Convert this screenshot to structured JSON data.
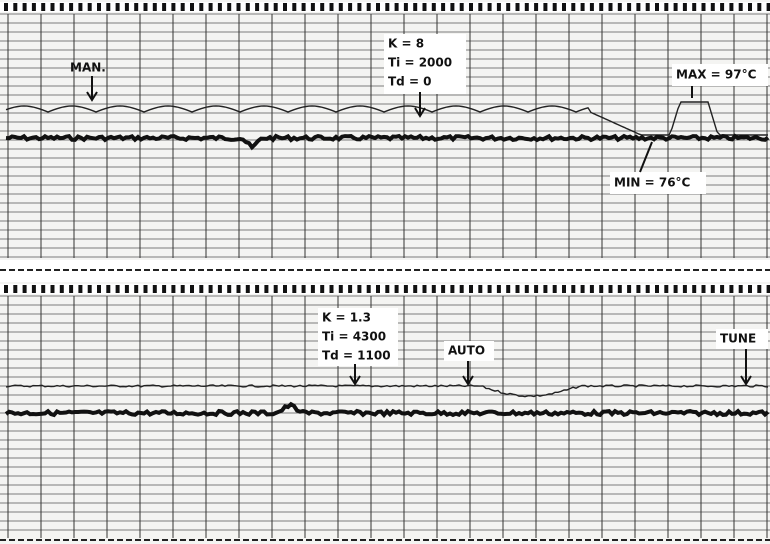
{
  "top_panel": {
    "manual_label": "MAN.",
    "settings": [
      "K = 8",
      "Ti = 2000",
      "Td = 0"
    ],
    "max_label": "MAX = 97°C",
    "min_label": "MIN = 76°C"
  },
  "bottom_panel": {
    "settings": [
      "K = 1.3",
      "Ti = 4300",
      "Td = 1100"
    ],
    "auto_label": "AUTO",
    "tune_label": "TUNE"
  }
}
